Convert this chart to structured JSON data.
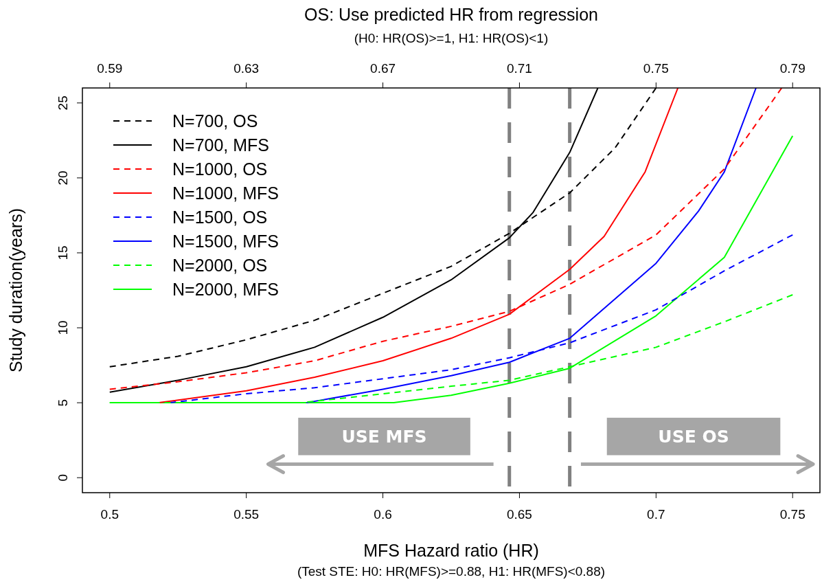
{
  "chart_data": {
    "type": "line",
    "title": "OS: Use predicted HR from regression",
    "subtitle": "(H0: HR(OS)>=1, H1: HR(OS)<1)",
    "xlabel": "MFS Hazard ratio (HR)",
    "ylabel": "Study duration(years)",
    "annotations": [
      "(Test STE: H0: HR(MFS)>=0.88, H1: HR(MFS)<0.88)",
      "USE MFS",
      "USE OS"
    ],
    "xlim": [
      0.49,
      0.76
    ],
    "xticks": [
      0.5,
      0.55,
      0.6,
      0.65,
      0.7,
      0.75
    ],
    "x2lim": [
      0.582,
      0.798
    ],
    "x2ticks": [
      0.59,
      0.63,
      0.67,
      0.71,
      0.75,
      0.79
    ],
    "ylim": [
      -1,
      26
    ],
    "yticks": [
      0,
      5,
      10,
      15,
      20,
      25
    ],
    "grid": false,
    "legend": "top left",
    "ref_lines": [
      {
        "axis": "x",
        "value": 0.6463,
        "color": "#808080",
        "line_style": "dashed"
      },
      {
        "axis": "x",
        "value": 0.6684,
        "color": "#808080",
        "line_style": "dashed"
      }
    ],
    "series": [
      {
        "name": "N=700, OS",
        "color": "#000000",
        "line_style": "dashed",
        "x": [
          0.5,
          0.525,
          0.55,
          0.575,
          0.6,
          0.625,
          0.6463,
          0.6684,
          0.685,
          0.7
        ],
        "values": [
          7.4,
          8.1,
          9.2,
          10.5,
          12.3,
          14.1,
          16.3,
          19.0,
          22.0,
          26.0
        ]
      },
      {
        "name": "N=700, MFS",
        "color": "#000000",
        "line_style": "solid",
        "x": [
          0.5,
          0.525,
          0.55,
          0.575,
          0.6,
          0.625,
          0.6463,
          0.655,
          0.6684,
          0.6787
        ],
        "values": [
          5.7,
          6.5,
          7.4,
          8.7,
          10.7,
          13.2,
          16.0,
          17.7,
          21.7,
          26.0
        ]
      },
      {
        "name": "N=1000, OS",
        "color": "#ff0000",
        "line_style": "dashed",
        "x": [
          0.5,
          0.525,
          0.55,
          0.575,
          0.6,
          0.625,
          0.6463,
          0.6684,
          0.7,
          0.725,
          0.746
        ],
        "values": [
          5.9,
          6.4,
          7.0,
          7.8,
          9.1,
          10.1,
          11.1,
          12.9,
          16.2,
          20.6,
          26.0
        ]
      },
      {
        "name": "N=1000, MFS",
        "color": "#ff0000",
        "line_style": "solid",
        "x": [
          0.518,
          0.55,
          0.575,
          0.6,
          0.625,
          0.6463,
          0.6684,
          0.681,
          0.696,
          0.708
        ],
        "values": [
          5.0,
          5.8,
          6.7,
          7.8,
          9.3,
          10.9,
          13.9,
          16.1,
          20.4,
          26.0
        ]
      },
      {
        "name": "N=1500, OS",
        "color": "#0000ff",
        "line_style": "dashed",
        "x": [
          0.522,
          0.55,
          0.575,
          0.6,
          0.625,
          0.6463,
          0.6684,
          0.7,
          0.725,
          0.75
        ],
        "values": [
          5.0,
          5.6,
          6.0,
          6.6,
          7.2,
          8.0,
          9.0,
          11.2,
          13.8,
          16.2
        ]
      },
      {
        "name": "N=1500, MFS",
        "color": "#0000ff",
        "line_style": "solid",
        "x": [
          0.572,
          0.6,
          0.625,
          0.6463,
          0.6684,
          0.7,
          0.7156,
          0.725,
          0.7366
        ],
        "values": [
          5.0,
          5.9,
          6.8,
          7.7,
          9.3,
          14.3,
          17.8,
          20.4,
          26.0
        ]
      },
      {
        "name": "N=2000, OS",
        "color": "#00ff00",
        "line_style": "dashed",
        "x": [
          0.5,
          0.57,
          0.6,
          0.625,
          0.6463,
          0.6684,
          0.7,
          0.725,
          0.75
        ],
        "values": [
          5.0,
          5.0,
          5.6,
          6.1,
          6.5,
          7.4,
          8.7,
          10.4,
          12.2
        ]
      },
      {
        "name": "N=2000, MFS",
        "color": "#00ff00",
        "line_style": "solid",
        "x": [
          0.5,
          0.604,
          0.625,
          0.6463,
          0.6684,
          0.7,
          0.725,
          0.75
        ],
        "values": [
          5.0,
          5.0,
          5.5,
          6.3,
          7.3,
          10.8,
          14.7,
          22.8
        ]
      }
    ]
  }
}
